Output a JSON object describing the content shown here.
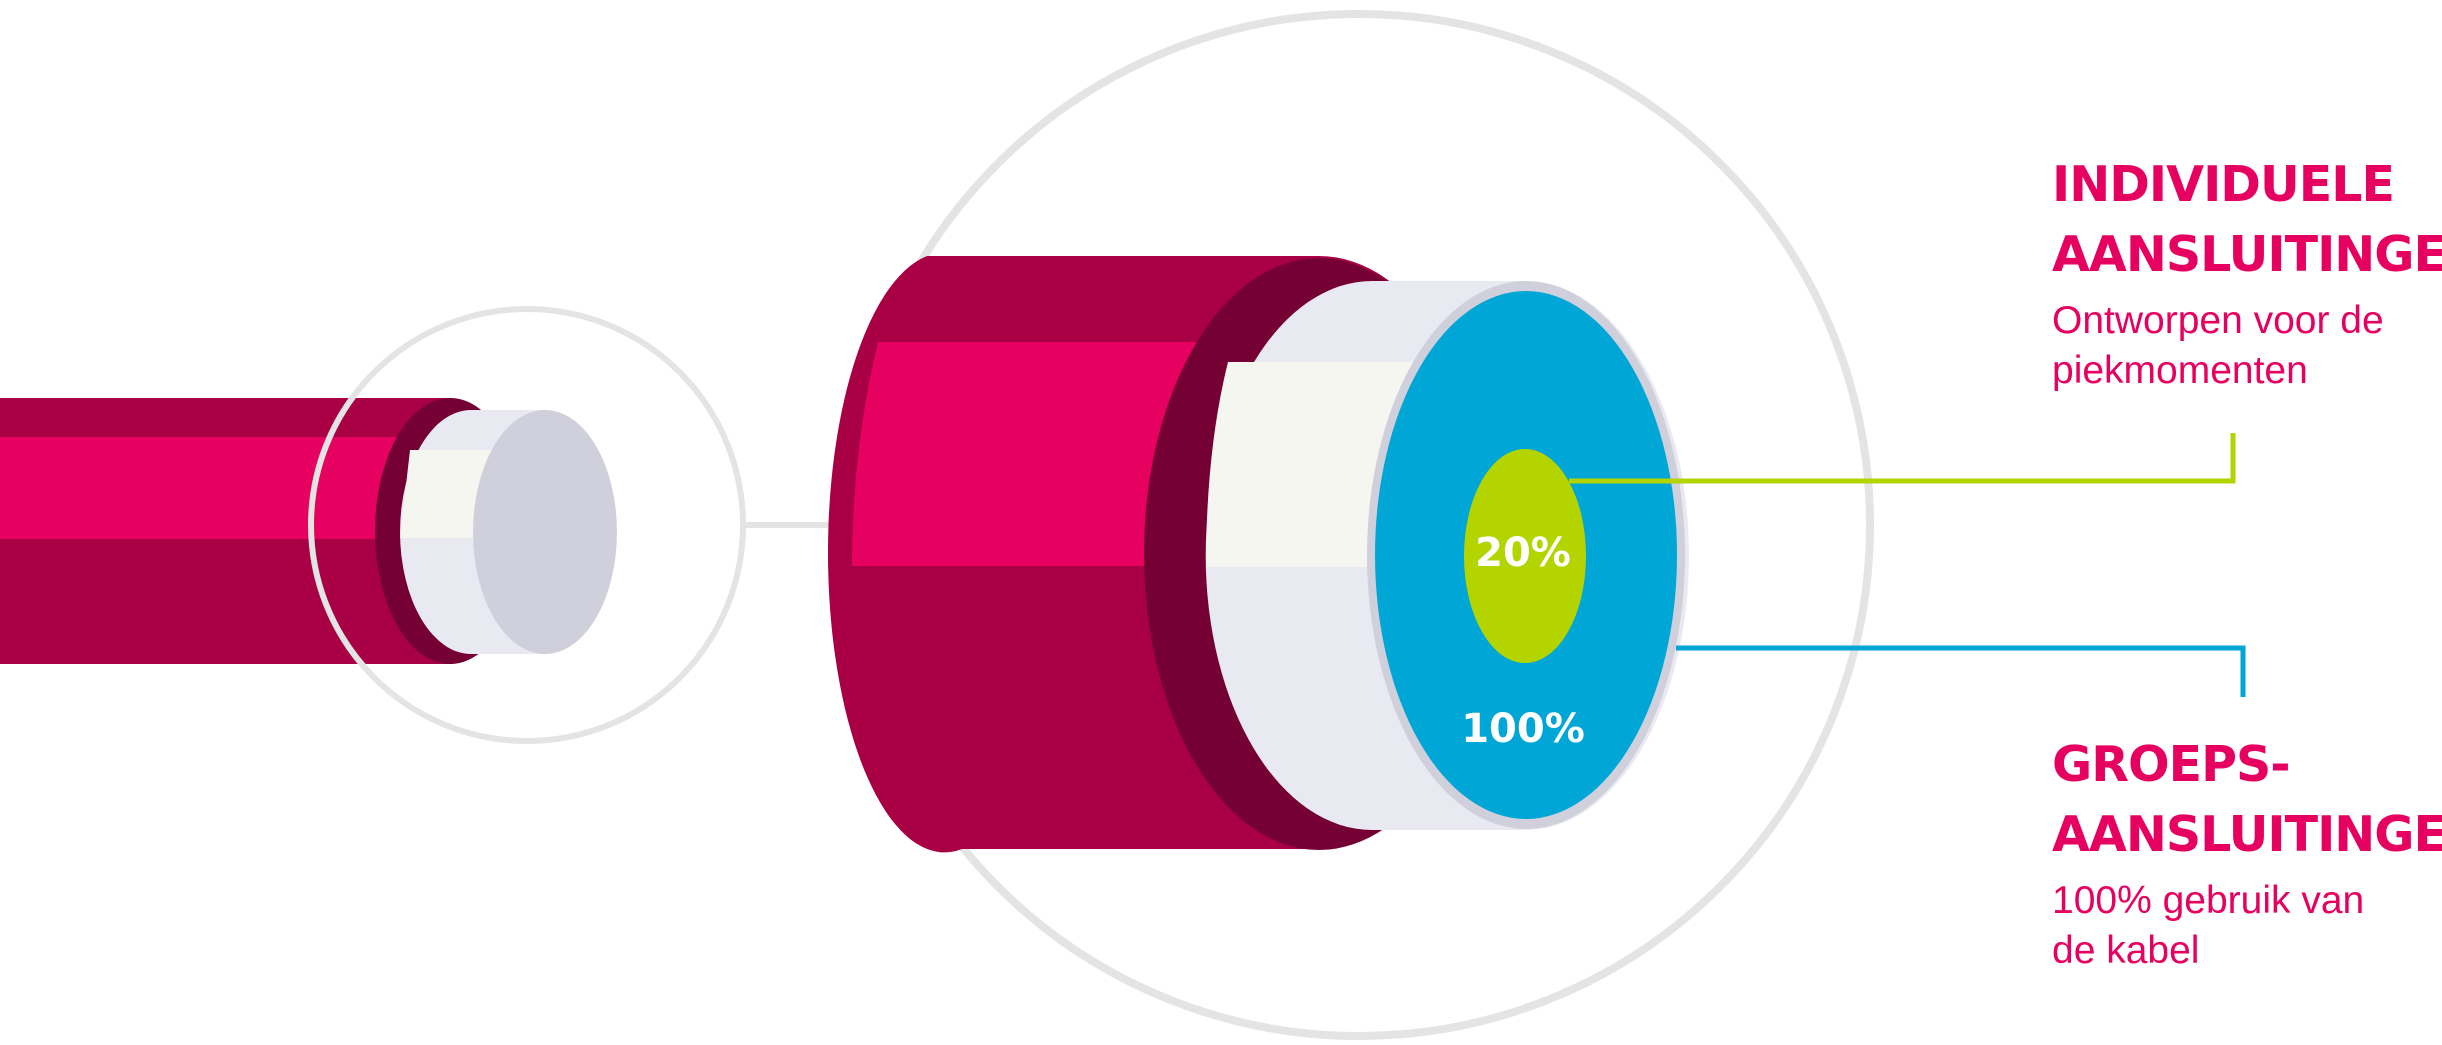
{
  "colors": {
    "magenta": "#e6005f",
    "dark_magenta": "#a90045",
    "burgundy": "#750033",
    "cream": "#f6f6f0",
    "lavender": "#e9e9f2",
    "blue_grey": "#d0d0dc",
    "cyan": "#00a6d6",
    "lime": "#b4d400",
    "ring_grey": "#e4e4e4"
  },
  "labels": {
    "inner_percent": "20%",
    "outer_percent": "100%"
  },
  "legend": {
    "individual": {
      "title": "INDIVIDUELE\nAANSLUITINGEN",
      "subtitle": "Ontworpen voor de\npiekmomenten"
    },
    "group": {
      "title": "GROEPS-\nAANSLUITINGEN",
      "subtitle": "100% gebruik van\nde kabel"
    }
  }
}
